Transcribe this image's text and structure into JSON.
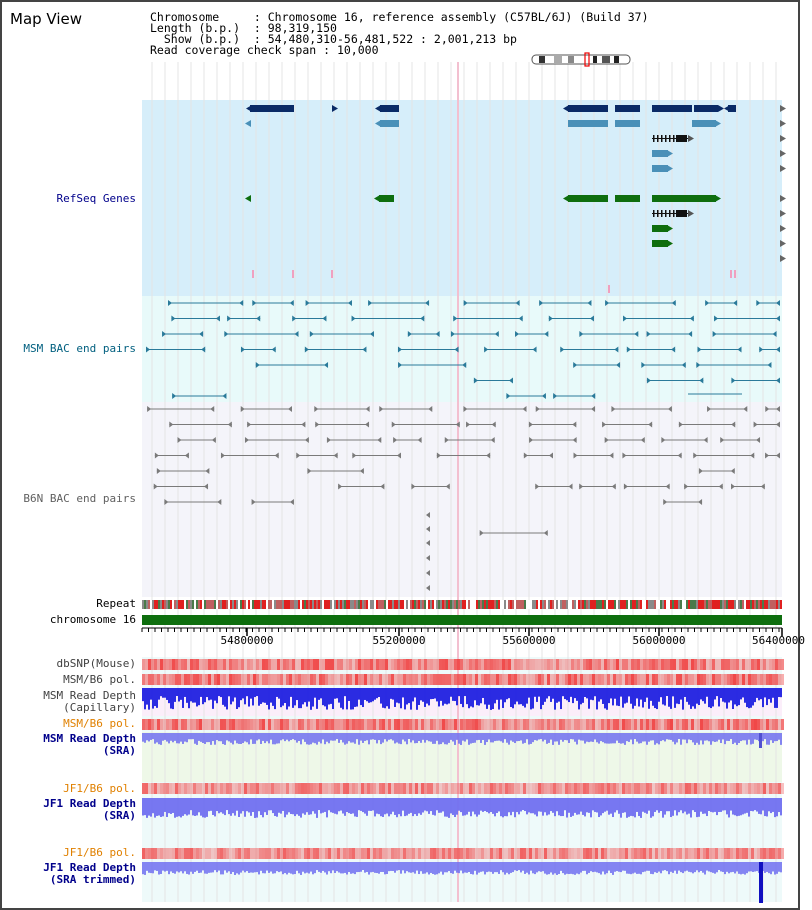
{
  "window": {
    "title": "Map View"
  },
  "info": {
    "chromosome_label": "Chromosome",
    "chromosome_value": "Chromosome 16, reference assembly (C57BL/6J) (Build 37)",
    "length_label": "Length (b.p.)",
    "length_value": "98,319,150",
    "show_label": "Show (b.p.)",
    "show_value": "54,480,310-56,481,522 : 2,001,213 bp",
    "coverage_label": "Read coverage check span",
    "coverage_value": "10,000"
  },
  "tracks": {
    "refseq": "RefSeq Genes",
    "msm_bac": "MSM BAC end pairs",
    "b6n_bac": "B6N BAC end pairs",
    "repeat": "Repeat",
    "chromosome": "chromosome 16",
    "dbsnp": "dbSNP(Mouse)",
    "msm_b6_pol": "MSM/B6 pol.",
    "msm_depth_cap": "MSM Read Depth\n(Capillary)",
    "msm_b6_pol2": "MSM/B6 pol.",
    "msm_depth_sra": "MSM Read Depth\n(SRA)",
    "jf1_b6_pol": "JF1/B6 pol.",
    "jf1_depth_sra": "JF1 Read Depth\n(SRA)",
    "jf1_b6_pol2": "JF1/B6 pol.",
    "jf1_depth_trim": "JF1 Read Depth\n(SRA trimmed)"
  },
  "axis": {
    "ticks": [
      "54800000",
      "55200000",
      "55600000",
      "56000000",
      "56400000"
    ]
  },
  "colors": {
    "refseq_bg": "#d6eefa",
    "msm_bg": "#e8fafa",
    "b6n_bg": "#f4f4fa",
    "gene_navy": "#0a2a66",
    "gene_blue": "#4a90b8",
    "gene_green": "#0e6e0e",
    "msm_pair": "#2a7a9a",
    "b6n_pair": "#7a7a7a",
    "chrom_green": "#0e6e0e",
    "snp_red": "#f06060",
    "depth_blue": "#2020e0",
    "depth_light": "#7070f0",
    "orange_label": "#e08000",
    "navy_label": "#00008b"
  }
}
